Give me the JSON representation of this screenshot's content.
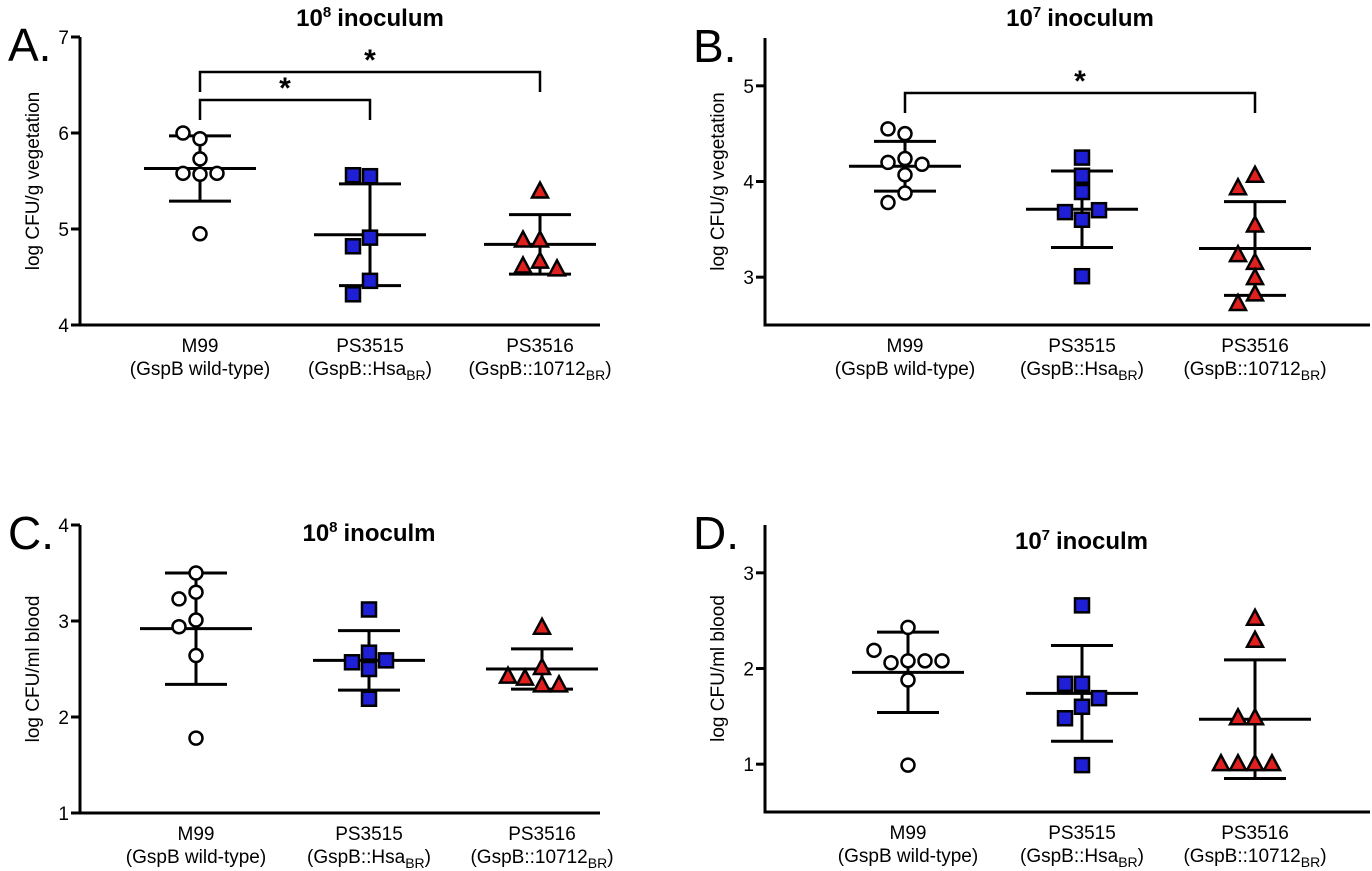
{
  "chart_data": [
    {
      "type": "dot",
      "panel": "A.",
      "title": {
        "base": "10",
        "sup": "8",
        "rest": "inoculum"
      },
      "ylabel": "log CFU/g vegetation",
      "ylim": [
        4,
        7
      ],
      "yticks": [
        4,
        5,
        6,
        7
      ],
      "groups": [
        {
          "name": "M99",
          "detail": "(GspB wild-type)",
          "marker": "circle",
          "color": "#ffffff",
          "values": [
            5.73,
            5.94,
            6.0,
            5.58,
            5.57,
            5.58,
            4.95
          ],
          "mean": 5.63,
          "sd": 0.34
        },
        {
          "name": "PS3515",
          "detail": "(GspB::Hsa",
          "detail_sub": "BR",
          "detail_end": ")",
          "marker": "square",
          "color": "#1f1fd6",
          "values": [
            5.55,
            5.56,
            4.91,
            4.82,
            4.46,
            4.32
          ],
          "mean": 4.94,
          "sd": 0.53
        },
        {
          "name": "PS3516",
          "detail": "(GspB::10712",
          "detail_sub": "BR",
          "detail_end": ")",
          "marker": "triangle",
          "color": "#e01f1f",
          "values": [
            5.39,
            4.88,
            4.88,
            4.66,
            4.61,
            4.58
          ],
          "mean": 4.84,
          "sd": 0.31
        }
      ],
      "significance": [
        {
          "from": 0,
          "to": 1,
          "label": "*"
        },
        {
          "from": 0,
          "to": 2,
          "label": "*"
        }
      ]
    },
    {
      "type": "dot",
      "panel": "B.",
      "title": {
        "base": "10",
        "sup": "7",
        "rest": "inoculum"
      },
      "ylabel": "log CFU/g vegetation",
      "ylim": [
        2.5,
        5.5
      ],
      "yticks": [
        3,
        4,
        5
      ],
      "groups": [
        {
          "name": "M99",
          "detail": "(GspB wild-type)",
          "marker": "circle",
          "color": "#ffffff",
          "values": [
            4.5,
            4.55,
            4.24,
            4.2,
            4.18,
            4.07,
            3.88,
            3.78
          ],
          "mean": 4.16,
          "sd": 0.26
        },
        {
          "name": "PS3515",
          "detail": "(GspB::Hsa",
          "detail_sub": "BR",
          "detail_end": ")",
          "marker": "square",
          "color": "#1f1fd6",
          "values": [
            4.25,
            4.06,
            3.89,
            3.6,
            3.68,
            3.7,
            3.01
          ],
          "mean": 3.71,
          "sd": 0.4
        },
        {
          "name": "PS3516",
          "detail": "(GspB::10712",
          "detail_sub": "BR",
          "detail_end": ")",
          "marker": "triangle",
          "color": "#e01f1f",
          "values": [
            4.06,
            3.93,
            3.54,
            3.15,
            3.23,
            2.99,
            2.82,
            2.72
          ],
          "mean": 3.3,
          "sd": 0.49
        }
      ],
      "significance": [
        {
          "from": 0,
          "to": 2,
          "label": "*"
        }
      ]
    },
    {
      "type": "dot",
      "panel": "C.",
      "title": {
        "base": "10",
        "sup": "8",
        "rest": "inoculm"
      },
      "ylabel": "log CFU/ml blood",
      "ylim": [
        1,
        4
      ],
      "yticks": [
        1,
        2,
        3,
        4
      ],
      "groups": [
        {
          "name": "M99",
          "detail": "(GspB wild-type)",
          "marker": "circle",
          "color": "#ffffff",
          "values": [
            3.5,
            3.3,
            3.23,
            3.01,
            2.94,
            2.64,
            1.78
          ],
          "mean": 2.92,
          "sd": 0.58
        },
        {
          "name": "PS3515",
          "detail": "(GspB::Hsa",
          "detail_sub": "BR",
          "detail_end": ")",
          "marker": "square",
          "color": "#1f1fd6",
          "values": [
            3.12,
            2.67,
            2.57,
            2.59,
            2.5,
            2.19
          ],
          "mean": 2.59,
          "sd": 0.31
        },
        {
          "name": "PS3516",
          "detail": "(GspB::10712",
          "detail_sub": "BR",
          "detail_end": ")",
          "marker": "triangle",
          "color": "#e01f1f",
          "values": [
            2.93,
            2.51,
            2.4,
            2.33,
            2.33,
            2.42
          ],
          "mean": 2.5,
          "sd": 0.21
        }
      ],
      "significance": []
    },
    {
      "type": "dot",
      "panel": "D.",
      "title": {
        "base": "10",
        "sup": "7",
        "rest": "inoculm"
      },
      "ylabel": "log CFU/ml blood",
      "ylim": [
        0.5,
        3.5
      ],
      "yticks": [
        1,
        2,
        3
      ],
      "groups": [
        {
          "name": "M99",
          "detail": "(GspB wild-type)",
          "marker": "circle",
          "color": "#ffffff",
          "values": [
            2.43,
            2.08,
            2.06,
            2.08,
            2.19,
            2.08,
            1.88,
            0.99
          ],
          "mean": 1.96,
          "sd": 0.42
        },
        {
          "name": "PS3515",
          "detail": "(GspB::Hsa",
          "detail_sub": "BR",
          "detail_end": ")",
          "marker": "square",
          "color": "#1f1fd6",
          "values": [
            2.66,
            1.84,
            1.84,
            1.69,
            1.6,
            1.48,
            0.99
          ],
          "mean": 1.74,
          "sd": 0.5
        },
        {
          "name": "PS3516",
          "detail": "(GspB::10712",
          "detail_sub": "BR",
          "detail_end": ")",
          "marker": "triangle",
          "color": "#e01f1f",
          "values": [
            2.52,
            2.29,
            1.48,
            1.48,
            1.0,
            1.0,
            1.0,
            1.0
          ],
          "mean": 1.47,
          "sd": 0.62
        }
      ],
      "significance": []
    }
  ]
}
